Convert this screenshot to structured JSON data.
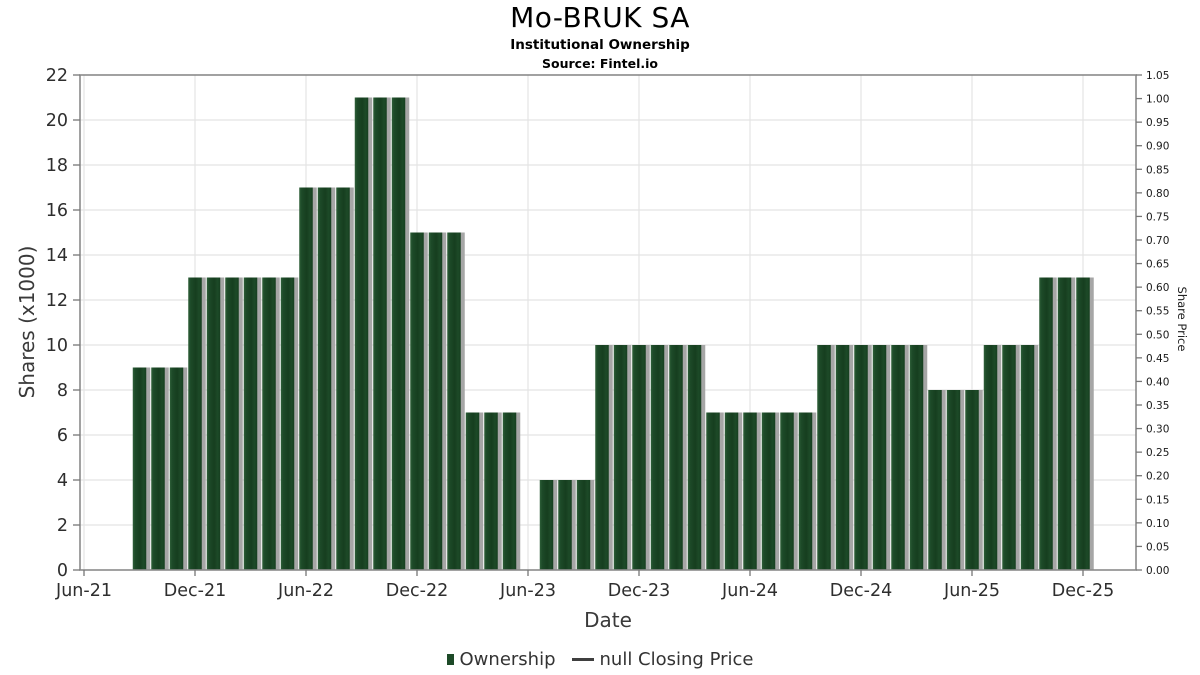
{
  "header": {
    "title": "Mo-BRUK SA",
    "subtitle": "Institutional Ownership",
    "source": "Source: Fintel.io"
  },
  "axes": {
    "left_title": "Shares (x1000)",
    "right_title": "Share Price",
    "x_title": "Date"
  },
  "legend": {
    "ownership_label": "Ownership",
    "price_label": "null Closing Price"
  },
  "colors": {
    "bar": "#1d4a28",
    "bar_light": "#2f6039",
    "bar_dark": "#163e1f",
    "bar_shadow": "#a6a6a6",
    "grid": "#e4e4e4",
    "plot_border": "#8a8a8a",
    "tick": "#777777",
    "tick_text": "#2e2e2e",
    "right_tick_text": "#1a1a1a"
  },
  "chart_data": {
    "type": "bar",
    "title": "Mo-BRUK SA",
    "subtitle": "Institutional Ownership",
    "source": "Source: Fintel.io",
    "xlabel": "Date",
    "ylabel_left": "Shares (x1000)",
    "ylabel_right": "Share Price",
    "legend_position": "bottom",
    "grid": true,
    "x_axis_start": "Jun-21",
    "x_ticks": [
      "Jun-21",
      "Dec-21",
      "Jun-22",
      "Dec-22",
      "Jun-23",
      "Dec-23",
      "Jun-24",
      "Dec-24",
      "Jun-25",
      "Dec-25"
    ],
    "y_left": {
      "min": 0,
      "max": 22,
      "step": 2
    },
    "y_right": {
      "min": 0,
      "max": 1.05,
      "step": 0.05
    },
    "series": [
      {
        "name": "Ownership",
        "type": "bar",
        "units": "shares x1000",
        "points": [
          {
            "month": "Sep-21",
            "value": 9
          },
          {
            "month": "Oct-21",
            "value": 9
          },
          {
            "month": "Nov-21",
            "value": 9
          },
          {
            "month": "Dec-21",
            "value": 13
          },
          {
            "month": "Jan-22",
            "value": 13
          },
          {
            "month": "Feb-22",
            "value": 13
          },
          {
            "month": "Mar-22",
            "value": 13
          },
          {
            "month": "Apr-22",
            "value": 13
          },
          {
            "month": "May-22",
            "value": 13
          },
          {
            "month": "Jun-22",
            "value": 17
          },
          {
            "month": "Jul-22",
            "value": 17
          },
          {
            "month": "Aug-22",
            "value": 17
          },
          {
            "month": "Sep-22",
            "value": 21
          },
          {
            "month": "Oct-22",
            "value": 21
          },
          {
            "month": "Nov-22",
            "value": 21
          },
          {
            "month": "Dec-22",
            "value": 15
          },
          {
            "month": "Jan-23",
            "value": 15
          },
          {
            "month": "Feb-23",
            "value": 15
          },
          {
            "month": "Mar-23",
            "value": 7
          },
          {
            "month": "Apr-23",
            "value": 7
          },
          {
            "month": "May-23",
            "value": 7
          },
          {
            "month": "Jun-23",
            "value": null
          },
          {
            "month": "Jul-23",
            "value": 4
          },
          {
            "month": "Aug-23",
            "value": 4
          },
          {
            "month": "Sep-23",
            "value": 4
          },
          {
            "month": "Oct-23",
            "value": 10
          },
          {
            "month": "Nov-23",
            "value": 10
          },
          {
            "month": "Dec-23",
            "value": 10
          },
          {
            "month": "Jan-24",
            "value": 10
          },
          {
            "month": "Feb-24",
            "value": 10
          },
          {
            "month": "Mar-24",
            "value": 10
          },
          {
            "month": "Apr-24",
            "value": 7
          },
          {
            "month": "May-24",
            "value": 7
          },
          {
            "month": "Jun-24",
            "value": 7
          },
          {
            "month": "Jul-24",
            "value": 7
          },
          {
            "month": "Aug-24",
            "value": 7
          },
          {
            "month": "Sep-24",
            "value": 7
          },
          {
            "month": "Oct-24",
            "value": 10
          },
          {
            "month": "Nov-24",
            "value": 10
          },
          {
            "month": "Dec-24",
            "value": 10
          },
          {
            "month": "Jan-25",
            "value": 10
          },
          {
            "month": "Feb-25",
            "value": 10
          },
          {
            "month": "Mar-25",
            "value": 10
          },
          {
            "month": "Apr-25",
            "value": 8
          },
          {
            "month": "May-25",
            "value": 8
          },
          {
            "month": "Jun-25",
            "value": 8
          },
          {
            "month": "Jul-25",
            "value": 10
          },
          {
            "month": "Aug-25",
            "value": 10
          },
          {
            "month": "Sep-25",
            "value": 10
          },
          {
            "month": "Oct-25",
            "value": 13
          },
          {
            "month": "Nov-25",
            "value": 13
          },
          {
            "month": "Dec-25",
            "value": 13
          }
        ]
      },
      {
        "name": "null Closing Price",
        "type": "line",
        "points": []
      }
    ]
  }
}
